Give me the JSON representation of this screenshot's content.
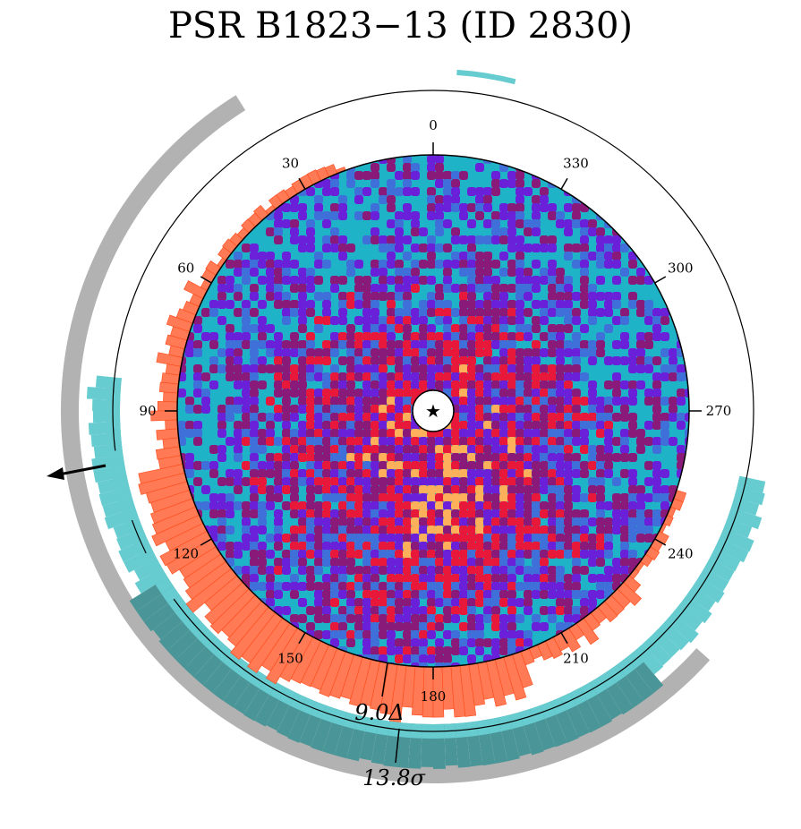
{
  "title": "PSR B1823−13 (ID 2830)",
  "chart_data": {
    "type": "heatmap",
    "projection": "polar",
    "angle_ticks": [
      "0",
      "30",
      "60",
      "90",
      "120",
      "150",
      "180",
      "210",
      "240",
      "270",
      "300",
      "330"
    ],
    "annotations": {
      "inner_ring_label": "9.0Δ",
      "outer_ring_label": "13.8σ"
    },
    "colors": {
      "map_low": "#1fb3c8",
      "map_mid": "#6a20d8",
      "map_high": "#e8183a",
      "map_peak": "#ffb05a",
      "inner_ring": "#ff7a55",
      "inner_ring_edge": "#ff4a1a",
      "outer_ring": "#66ccd0",
      "outer_ring_dark": "#4a9597",
      "wedge": "#b2b2b2",
      "center_star": "#000000"
    },
    "center_marker": "star-icon"
  }
}
